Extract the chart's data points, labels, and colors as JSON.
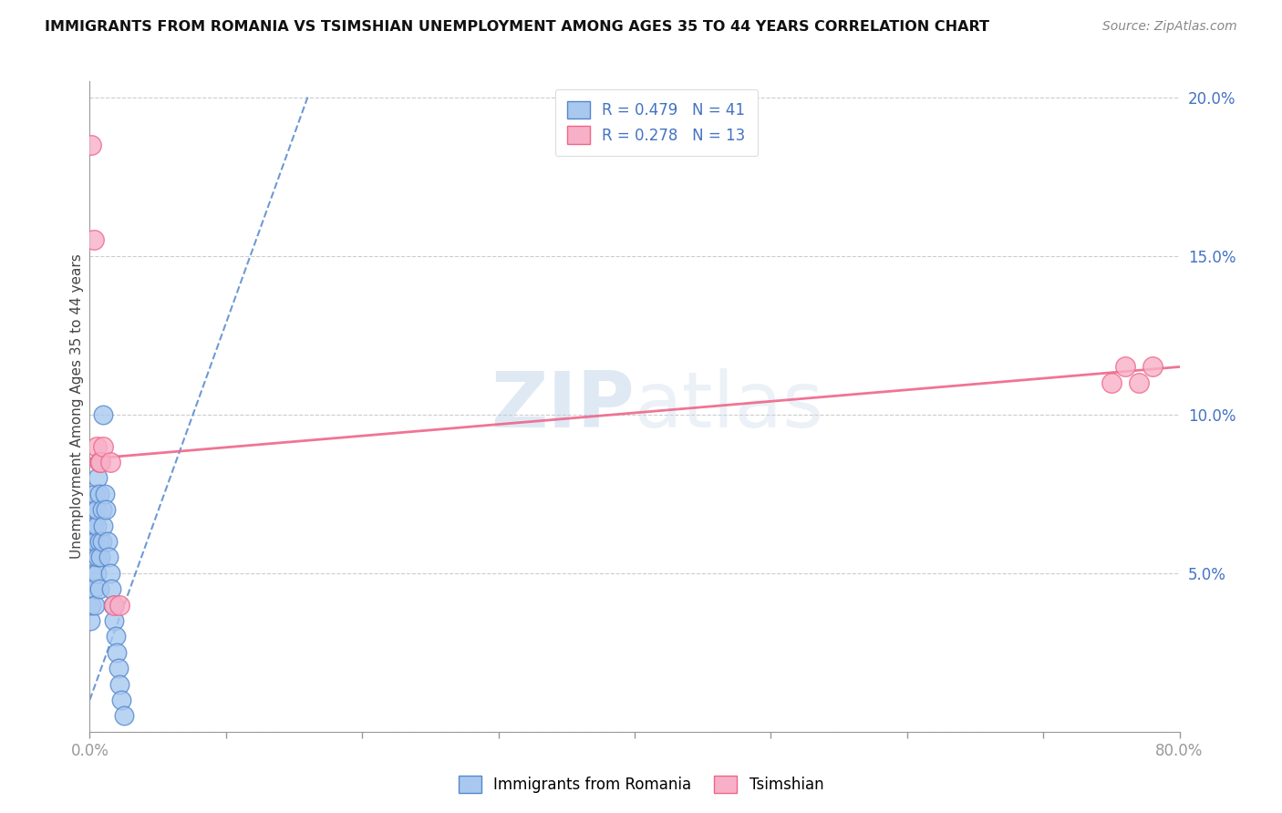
{
  "title": "IMMIGRANTS FROM ROMANIA VS TSIMSHIAN UNEMPLOYMENT AMONG AGES 35 TO 44 YEARS CORRELATION CHART",
  "source": "Source: ZipAtlas.com",
  "ylabel": "Unemployment Among Ages 35 to 44 years",
  "background_color": "#ffffff",
  "watermark": "ZIPatlas",
  "romania_R": 0.479,
  "romania_N": 41,
  "tsimshian_R": 0.278,
  "tsimshian_N": 13,
  "romania_color": "#a8c8f0",
  "tsimshian_color": "#f8b0c8",
  "romania_line_color": "#5588cc",
  "tsimshian_line_color": "#ee6688",
  "xlim": [
    0,
    0.8
  ],
  "ylim": [
    0,
    0.205
  ],
  "romania_x": [
    0.0005,
    0.001,
    0.001,
    0.0015,
    0.002,
    0.002,
    0.002,
    0.003,
    0.003,
    0.003,
    0.004,
    0.004,
    0.004,
    0.005,
    0.005,
    0.005,
    0.006,
    0.006,
    0.007,
    0.007,
    0.007,
    0.008,
    0.008,
    0.009,
    0.009,
    0.01,
    0.01,
    0.011,
    0.012,
    0.013,
    0.014,
    0.015,
    0.016,
    0.017,
    0.018,
    0.019,
    0.02,
    0.021,
    0.022,
    0.023,
    0.025
  ],
  "romania_y": [
    0.035,
    0.04,
    0.055,
    0.065,
    0.05,
    0.06,
    0.07,
    0.045,
    0.055,
    0.065,
    0.04,
    0.06,
    0.075,
    0.05,
    0.065,
    0.07,
    0.055,
    0.08,
    0.045,
    0.06,
    0.075,
    0.055,
    0.085,
    0.06,
    0.07,
    0.065,
    0.1,
    0.075,
    0.07,
    0.06,
    0.055,
    0.05,
    0.045,
    0.04,
    0.035,
    0.03,
    0.025,
    0.02,
    0.015,
    0.01,
    0.005
  ],
  "tsimshian_x": [
    0.001,
    0.003,
    0.005,
    0.007,
    0.008,
    0.01,
    0.015,
    0.018,
    0.022,
    0.75,
    0.76,
    0.77,
    0.78
  ],
  "tsimshian_y": [
    0.185,
    0.155,
    0.09,
    0.085,
    0.085,
    0.09,
    0.085,
    0.04,
    0.04,
    0.11,
    0.115,
    0.11,
    0.115
  ],
  "rom_line_x": [
    0.0,
    0.16
  ],
  "rom_line_y": [
    0.01,
    0.2
  ],
  "tsim_line_x": [
    0.0,
    0.8
  ],
  "tsim_line_y": [
    0.086,
    0.115
  ]
}
